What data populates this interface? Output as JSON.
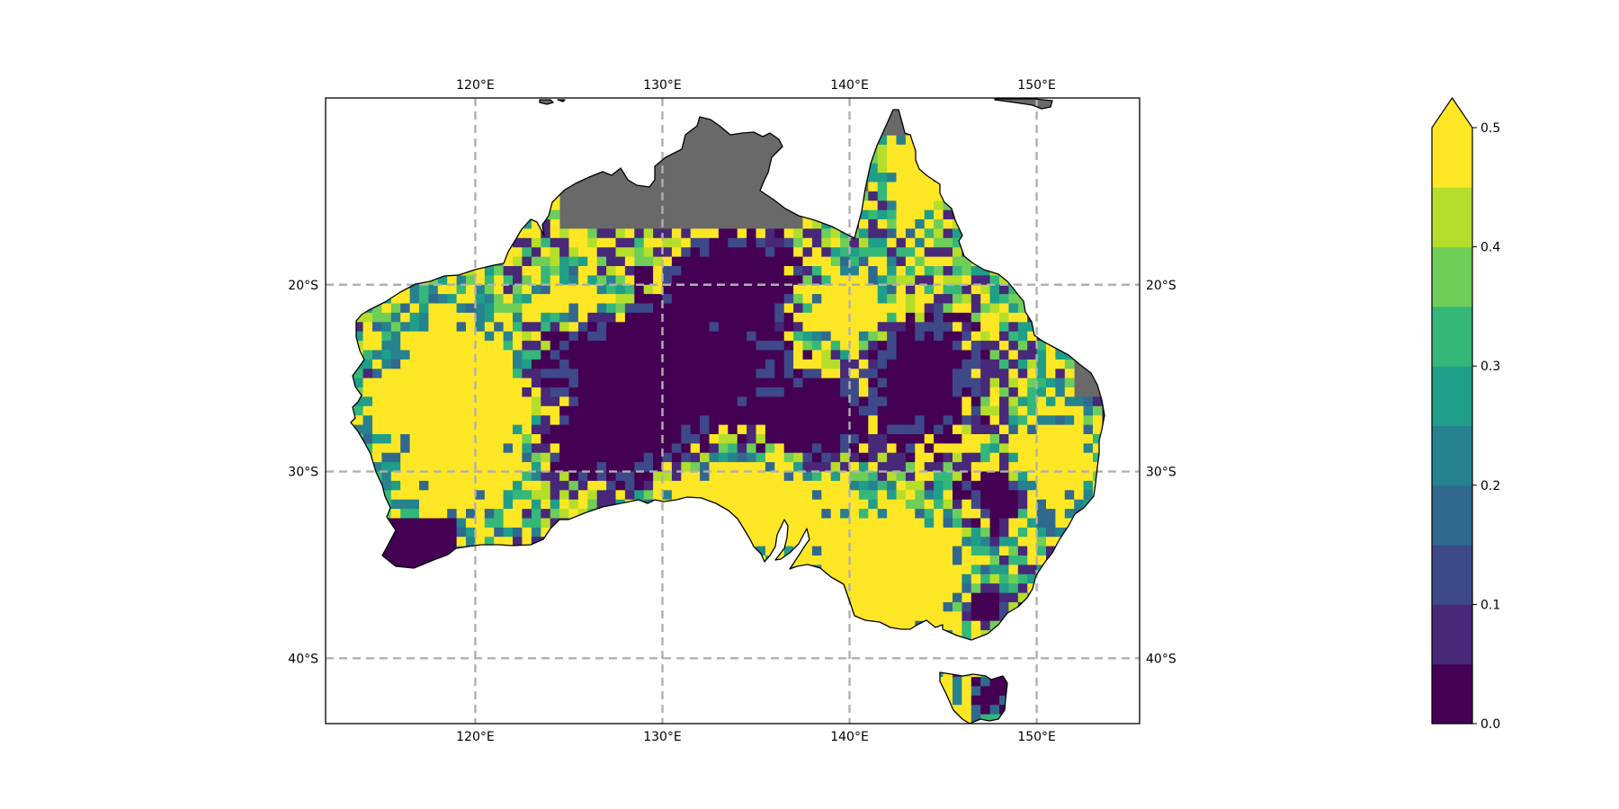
{
  "map": {
    "projection": "PlateCarree",
    "extent": {
      "lon_min": 112,
      "lon_max": 155.5,
      "lat_min": -43.5,
      "lat_max": -10
    },
    "lon_gridlines": [
      120,
      130,
      140,
      150
    ],
    "lat_gridlines": [
      -20,
      -30,
      -40
    ],
    "lon_labels": [
      "120°E",
      "130°E",
      "140°E",
      "150°E"
    ],
    "lat_labels": [
      "20°S",
      "30°S",
      "40°S"
    ],
    "land_no_data_color": "#696969",
    "ocean_color": "#ffffff",
    "coastline_color": "#000000",
    "gridline_color": "#b0b0b0"
  },
  "colorbar": {
    "levels": [
      0.0,
      0.05,
      0.1,
      0.15,
      0.2,
      0.25,
      0.3,
      0.35,
      0.4,
      0.45,
      0.5
    ],
    "tick_labels": [
      "0.0",
      "0.1",
      "0.2",
      "0.3",
      "0.4",
      "0.5"
    ],
    "extend": "max",
    "colormap": "viridis",
    "colors": [
      "#440154",
      "#482878",
      "#3e4989",
      "#31688e",
      "#26828e",
      "#1f9e89",
      "#35b779",
      "#6ece58",
      "#b5de2b",
      "#fde725"
    ]
  }
}
